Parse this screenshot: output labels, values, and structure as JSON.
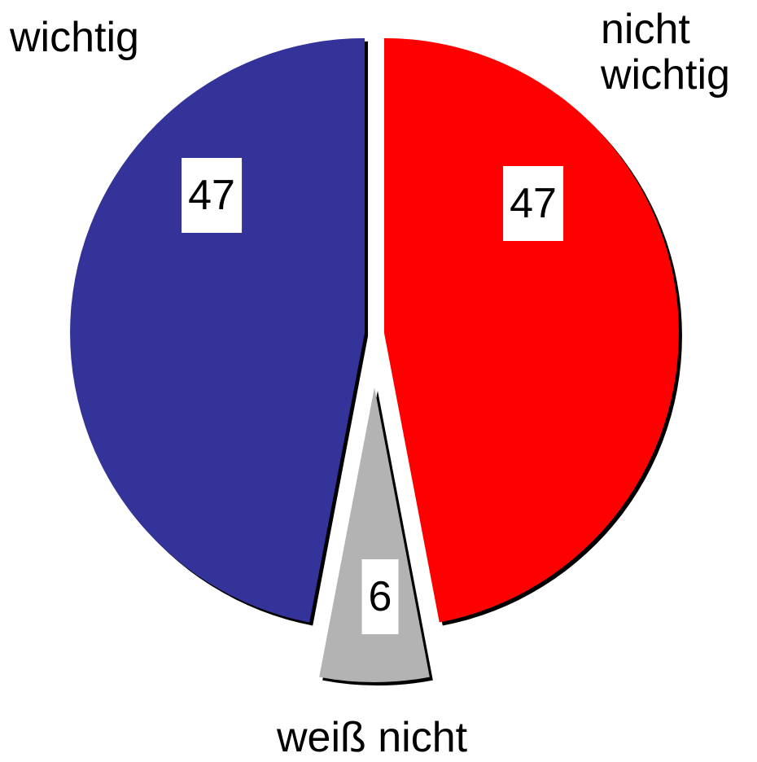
{
  "chart_data": {
    "type": "pie",
    "categories": [
      "nicht wichtig",
      "weiß nicht",
      "wichtig"
    ],
    "values": [
      47,
      6,
      47
    ],
    "colors": [
      "#ff0000",
      "#b3b3b3",
      "#333399"
    ]
  }
}
